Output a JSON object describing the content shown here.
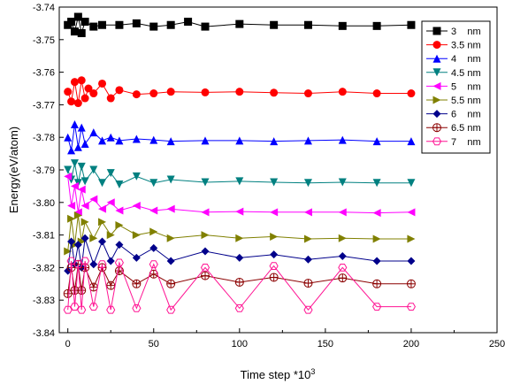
{
  "chart_data": {
    "type": "line",
    "xlabel": "Time step *10",
    "xlabel_sup": "3",
    "ylabel": "Energy(eV/atom)",
    "xlim": [
      -5,
      250
    ],
    "ylim": [
      -3.84,
      -3.74
    ],
    "x_ticks": [
      "0",
      "50",
      "100",
      "150",
      "200",
      "250"
    ],
    "x_tick_values": [
      0,
      50,
      100,
      150,
      200,
      250
    ],
    "y_ticks": [
      "-3.74",
      "-3.75",
      "-3.76",
      "-3.77",
      "-3.78",
      "-3.79",
      "-3.80",
      "-3.81",
      "-3.82",
      "-3.83",
      "-3.84"
    ],
    "y_tick_values": [
      -3.74,
      -3.75,
      -3.76,
      -3.77,
      -3.78,
      -3.79,
      -3.8,
      -3.81,
      -3.82,
      -3.83,
      -3.84
    ],
    "grid": false,
    "legend_position": "top-right",
    "series": [
      {
        "name": "3    nm",
        "color": "#000000",
        "marker": "square",
        "x": [
          0,
          2,
          4,
          6,
          8,
          10,
          15,
          20,
          30,
          40,
          50,
          60,
          70,
          80,
          100,
          120,
          140,
          160,
          180,
          200
        ],
        "y": [
          -3.7455,
          -3.7445,
          -3.7475,
          -3.743,
          -3.748,
          -3.7445,
          -3.746,
          -3.7455,
          -3.7455,
          -3.745,
          -3.746,
          -3.7455,
          -3.7445,
          -3.746,
          -3.7452,
          -3.7455,
          -3.7455,
          -3.7458,
          -3.7458,
          -3.7455
        ]
      },
      {
        "name": "3.5 nm",
        "color": "#ff0000",
        "marker": "circle",
        "x": [
          0,
          2,
          4,
          6,
          8,
          10,
          12,
          15,
          20,
          25,
          30,
          40,
          50,
          60,
          80,
          100,
          120,
          140,
          160,
          180,
          200
        ],
        "y": [
          -3.766,
          -3.769,
          -3.763,
          -3.7695,
          -3.7625,
          -3.768,
          -3.765,
          -3.7665,
          -3.7635,
          -3.768,
          -3.7655,
          -3.7668,
          -3.7665,
          -3.766,
          -3.7662,
          -3.766,
          -3.7663,
          -3.7665,
          -3.766,
          -3.7665,
          -3.7665
        ]
      },
      {
        "name": "4    nm",
        "color": "#0000ff",
        "marker": "triangle-up",
        "x": [
          0,
          2,
          4,
          6,
          8,
          10,
          15,
          20,
          25,
          30,
          40,
          50,
          60,
          80,
          100,
          120,
          140,
          160,
          180,
          200
        ],
        "y": [
          -3.78,
          -3.784,
          -3.776,
          -3.783,
          -3.777,
          -3.782,
          -3.7785,
          -3.781,
          -3.78,
          -3.781,
          -3.7805,
          -3.7808,
          -3.7812,
          -3.781,
          -3.781,
          -3.7812,
          -3.781,
          -3.7808,
          -3.7812,
          -3.7812
        ]
      },
      {
        "name": "4.5 nm",
        "color": "#008080",
        "marker": "triangle-down",
        "x": [
          0,
          2,
          4,
          6,
          8,
          10,
          15,
          20,
          25,
          30,
          40,
          50,
          60,
          80,
          100,
          120,
          140,
          160,
          180,
          200
        ],
        "y": [
          -3.79,
          -3.793,
          -3.788,
          -3.794,
          -3.789,
          -3.7935,
          -3.79,
          -3.794,
          -3.791,
          -3.7945,
          -3.792,
          -3.794,
          -3.793,
          -3.7938,
          -3.7935,
          -3.7938,
          -3.794,
          -3.7938,
          -3.794,
          -3.794
        ]
      },
      {
        "name": "5    nm",
        "color": "#ff00ff",
        "marker": "triangle-left",
        "x": [
          0,
          2,
          4,
          6,
          8,
          10,
          15,
          20,
          25,
          30,
          40,
          50,
          60,
          80,
          100,
          120,
          140,
          160,
          180,
          200
        ],
        "y": [
          -3.792,
          -3.801,
          -3.795,
          -3.803,
          -3.796,
          -3.801,
          -3.799,
          -3.802,
          -3.8,
          -3.8025,
          -3.801,
          -3.8025,
          -3.802,
          -3.803,
          -3.8028,
          -3.803,
          -3.803,
          -3.803,
          -3.8032,
          -3.803
        ]
      },
      {
        "name": "5.5 nm",
        "color": "#808000",
        "marker": "triangle-right",
        "x": [
          0,
          2,
          4,
          6,
          8,
          10,
          15,
          20,
          25,
          30,
          40,
          50,
          60,
          80,
          100,
          120,
          140,
          160,
          180,
          200
        ],
        "y": [
          -3.815,
          -3.805,
          -3.813,
          -3.804,
          -3.812,
          -3.806,
          -3.811,
          -3.806,
          -3.81,
          -3.807,
          -3.81,
          -3.809,
          -3.811,
          -3.81,
          -3.811,
          -3.8105,
          -3.8112,
          -3.811,
          -3.8112,
          -3.8112
        ]
      },
      {
        "name": "6    nm",
        "color": "#00008b",
        "marker": "diamond",
        "x": [
          0,
          2,
          4,
          6,
          8,
          10,
          15,
          20,
          25,
          30,
          40,
          50,
          60,
          80,
          100,
          120,
          140,
          160,
          180,
          200
        ],
        "y": [
          -3.821,
          -3.812,
          -3.819,
          -3.813,
          -3.82,
          -3.811,
          -3.819,
          -3.812,
          -3.818,
          -3.813,
          -3.817,
          -3.814,
          -3.818,
          -3.815,
          -3.817,
          -3.816,
          -3.8175,
          -3.8165,
          -3.818,
          -3.818
        ]
      },
      {
        "name": "6.5 nm",
        "color": "#8b0000",
        "marker": "circle-cross",
        "x": [
          0,
          2,
          4,
          6,
          8,
          10,
          15,
          20,
          25,
          30,
          40,
          50,
          60,
          80,
          100,
          120,
          140,
          160,
          180,
          200
        ],
        "y": [
          -3.828,
          -3.82,
          -3.827,
          -3.819,
          -3.827,
          -3.82,
          -3.826,
          -3.82,
          -3.8255,
          -3.821,
          -3.825,
          -3.822,
          -3.825,
          -3.8225,
          -3.8245,
          -3.823,
          -3.8248,
          -3.8232,
          -3.825,
          -3.825
        ]
      },
      {
        "name": "7    nm",
        "color": "#ff1493",
        "marker": "hexagon",
        "x": [
          0,
          2,
          4,
          6,
          8,
          10,
          15,
          20,
          25,
          30,
          40,
          50,
          60,
          80,
          100,
          120,
          140,
          160,
          180,
          200
        ],
        "y": [
          -3.833,
          -3.818,
          -3.832,
          -3.819,
          -3.833,
          -3.818,
          -3.832,
          -3.819,
          -3.833,
          -3.8185,
          -3.8325,
          -3.819,
          -3.833,
          -3.82,
          -3.8325,
          -3.8195,
          -3.833,
          -3.82,
          -3.832,
          -3.832
        ]
      }
    ]
  }
}
